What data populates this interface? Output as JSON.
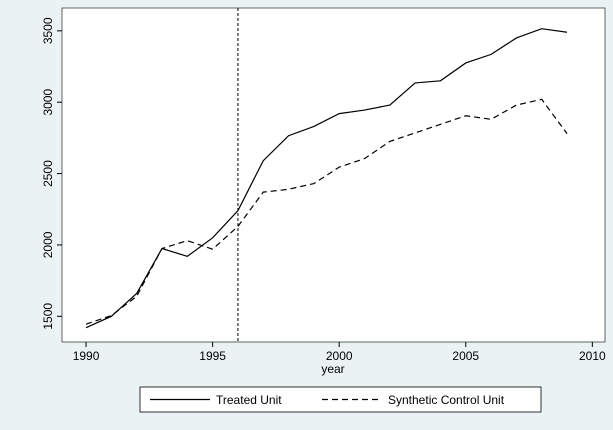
{
  "chart_data": {
    "type": "line",
    "xlabel": "year",
    "x": [
      1990,
      1991,
      1992,
      1993,
      1994,
      1995,
      1996,
      1997,
      1998,
      1999,
      2000,
      2001,
      2002,
      2003,
      2004,
      2005,
      2006,
      2007,
      2008,
      2009
    ],
    "series": [
      {
        "name": "Treated Unit",
        "color": "#000000",
        "dash": false,
        "values": [
          1420,
          1500,
          1660,
          1975,
          1920,
          2050,
          2240,
          2590,
          2765,
          2830,
          2920,
          2945,
          2980,
          3135,
          3150,
          3275,
          3335,
          3450,
          3515,
          3490
        ]
      },
      {
        "name": "Synthetic Control Unit",
        "color": "#000000",
        "dash": true,
        "values": [
          1445,
          1505,
          1640,
          1975,
          2030,
          1970,
          2130,
          2370,
          2390,
          2430,
          2545,
          2605,
          2725,
          2785,
          2845,
          2905,
          2880,
          2980,
          3020,
          2780
        ]
      }
    ],
    "xline": 1996,
    "xlim": [
      1989.05,
      2010.5
    ],
    "xticks": [
      1990,
      1995,
      2000,
      2005,
      2010
    ],
    "ylim": [
      1320,
      3660
    ],
    "yticks": [
      1500,
      2000,
      2500,
      3000,
      3500
    ],
    "grid": false,
    "legend": "bottom"
  }
}
